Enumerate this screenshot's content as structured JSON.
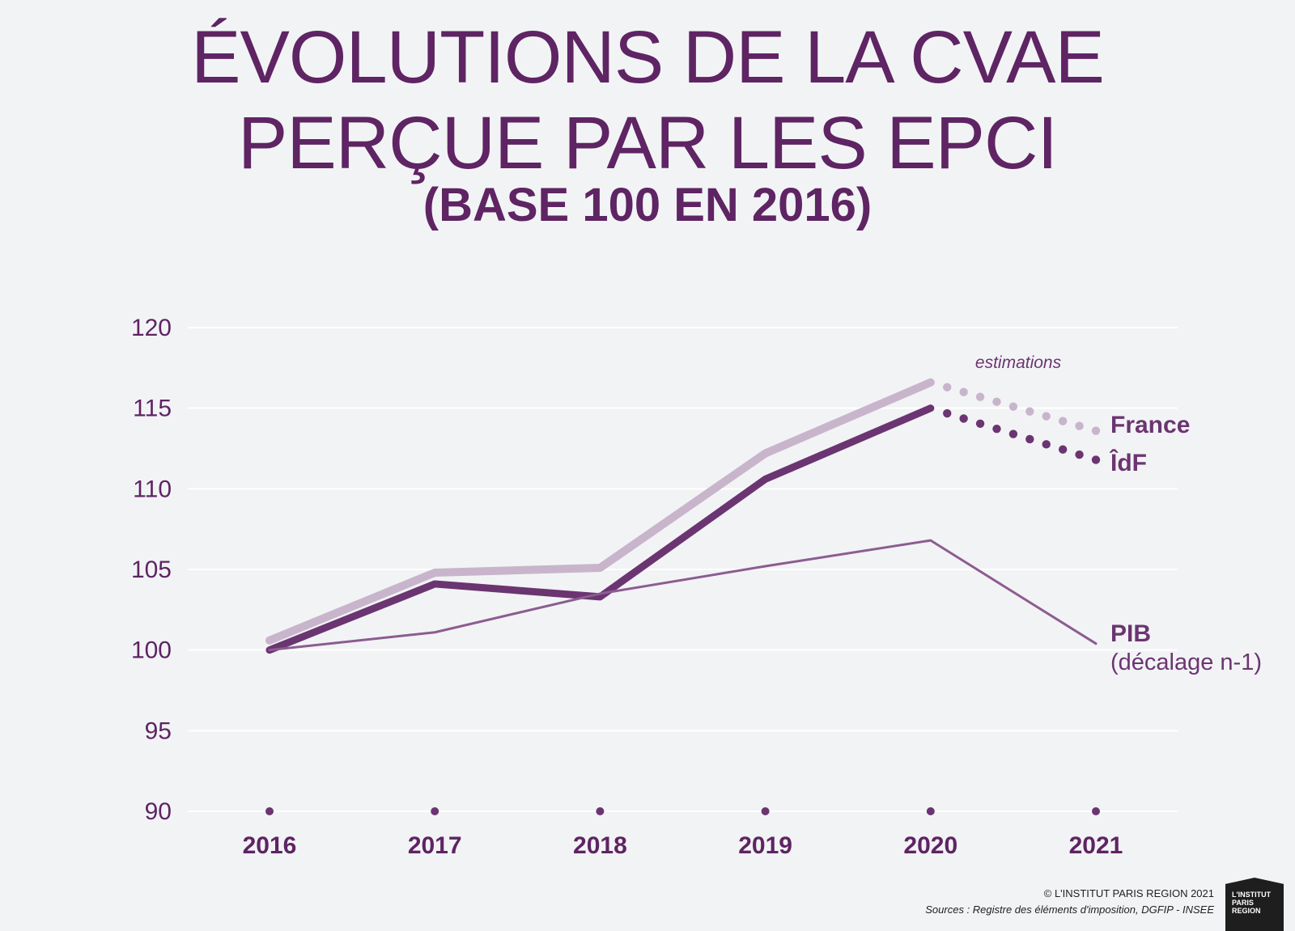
{
  "title": {
    "line1": "ÉVOLUTIONS DE LA CVAE",
    "line2": "PERÇUE PAR LES EPCI"
  },
  "subtitle": "(BASE 100 EN 2016)",
  "colors": {
    "france": "#c8b5cb",
    "idf": "#6b3571",
    "pib": "#8c5c91",
    "grid": "#ffffff",
    "axis_text": "#5e2463"
  },
  "chart_data": {
    "type": "line",
    "x": [
      "2016",
      "2017",
      "2018",
      "2019",
      "2020",
      "2021"
    ],
    "ylim": [
      90,
      120
    ],
    "yticks": [
      120,
      115,
      110,
      105,
      100,
      95,
      90
    ],
    "grid": true,
    "series": [
      {
        "name": "France",
        "key": "france",
        "values": [
          100.6,
          104.8,
          105.1,
          112.2,
          116.6,
          113.6
        ],
        "estimated_from": "2020"
      },
      {
        "name": "ÎdF",
        "key": "idf",
        "values": [
          100.0,
          104.1,
          103.3,
          110.6,
          115.0,
          111.8
        ],
        "estimated_from": "2020"
      },
      {
        "name": "PIB",
        "name_note": "(décalage n-1)",
        "key": "pib",
        "values": [
          100.0,
          101.1,
          103.5,
          105.2,
          106.8,
          100.4
        ]
      }
    ],
    "annotation": "estimations"
  },
  "footer": {
    "copyright": "© L'INSTITUT PARIS REGION 2021",
    "sources": "Sources : Registre des éléments d'imposition, DGFIP - INSEE"
  },
  "logo": {
    "line1": "L'INSTITUT",
    "line2": "PARIS",
    "line3": "REGION"
  }
}
